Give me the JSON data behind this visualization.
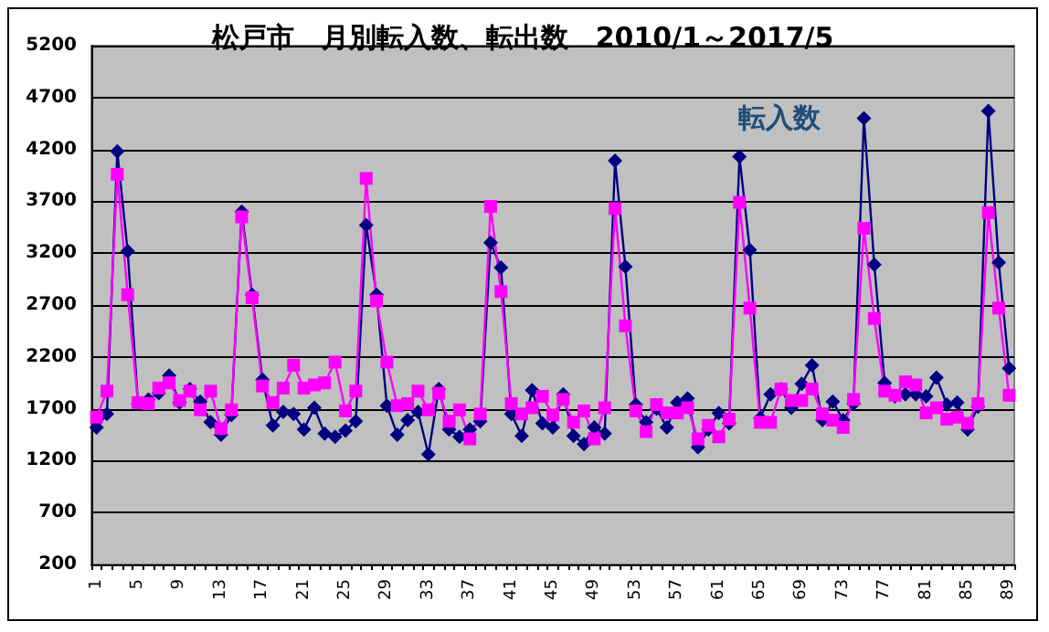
{
  "chart_data": {
    "type": "line",
    "title": "松戸市　月別転入数、転出数　2010/1～2017/5",
    "categories": [
      "1",
      null,
      null,
      null,
      "5",
      null,
      null,
      null,
      "9",
      null,
      null,
      null,
      "13",
      null,
      null,
      null,
      "17",
      null,
      null,
      null,
      "21",
      null,
      null,
      null,
      "25",
      null,
      null,
      null,
      "29",
      null,
      null,
      null,
      "33",
      null,
      null,
      null,
      "37",
      null,
      null,
      null,
      "41",
      null,
      null,
      null,
      "45",
      null,
      null,
      null,
      "49",
      null,
      null,
      null,
      "53",
      null,
      null,
      null,
      "57",
      null,
      null,
      null,
      "61",
      null,
      null,
      null,
      "65",
      null,
      null,
      null,
      "69",
      null,
      null,
      null,
      "73",
      null,
      null,
      null,
      "77",
      null,
      null,
      null,
      "81",
      null,
      null,
      null,
      "85",
      null,
      null,
      null,
      "89"
    ],
    "series": [
      {
        "name": "転入数",
        "color": "#000080",
        "marker": "diamond",
        "values": [
          1520,
          1650,
          4180,
          3220,
          1750,
          1790,
          1850,
          2020,
          1760,
          1890,
          1770,
          1570,
          1450,
          1640,
          3600,
          2800,
          1980,
          1540,
          1670,
          1650,
          1500,
          1710,
          1460,
          1430,
          1490,
          1580,
          3470,
          2800,
          1730,
          1450,
          1590,
          1670,
          1260,
          1890,
          1500,
          1430,
          1500,
          1580,
          3300,
          3060,
          1650,
          1440,
          1880,
          1560,
          1520,
          1840,
          1440,
          1360,
          1520,
          1460,
          4090,
          3070,
          1740,
          1570,
          1700,
          1520,
          1760,
          1800,
          1330,
          1500,
          1660,
          1560,
          4130,
          3230,
          1610,
          1840,
          1890,
          1710,
          1940,
          2120,
          1590,
          1770,
          1590,
          1750,
          4500,
          3090,
          1950,
          1820,
          1840,
          1840,
          1820,
          2000,
          1740,
          1760,
          1500,
          1720,
          4570,
          3110,
          2090
        ]
      },
      {
        "color": "#ff00ff",
        "marker": "square",
        "values": [
          1620,
          1870,
          3960,
          2800,
          1760,
          1750,
          1900,
          1950,
          1780,
          1870,
          1690,
          1870,
          1510,
          1690,
          3550,
          2770,
          1920,
          1760,
          1900,
          2120,
          1900,
          1930,
          1950,
          2150,
          1680,
          1870,
          3920,
          2740,
          2150,
          1730,
          1750,
          1870,
          1690,
          1850,
          1580,
          1690,
          1410,
          1650,
          3650,
          2830,
          1750,
          1650,
          1710,
          1820,
          1640,
          1790,
          1570,
          1680,
          1410,
          1710,
          3630,
          2500,
          1680,
          1480,
          1740,
          1660,
          1660,
          1710,
          1410,
          1540,
          1430,
          1600,
          3690,
          2670,
          1570,
          1570,
          1890,
          1780,
          1780,
          1890,
          1650,
          1590,
          1520,
          1790,
          3440,
          2570,
          1870,
          1830,
          1960,
          1930,
          1660,
          1710,
          1600,
          1620,
          1560,
          1750,
          3590,
          2670,
          1830
        ]
      }
    ],
    "ylim": [
      200,
      5200
    ],
    "yticks": [
      200,
      700,
      1200,
      1700,
      2200,
      2700,
      3200,
      3700,
      4200,
      4700,
      5200
    ],
    "grid": "y",
    "legend": false,
    "line_style": "solid"
  }
}
